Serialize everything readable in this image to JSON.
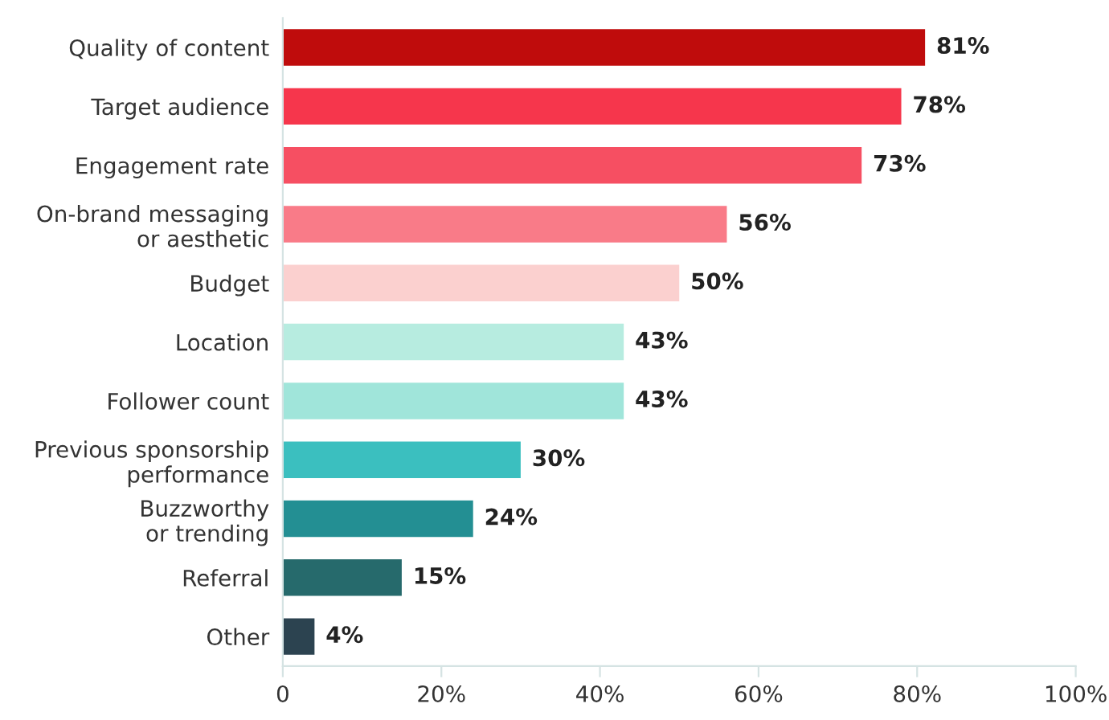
{
  "chart_data": {
    "type": "bar",
    "orientation": "horizontal",
    "categories": [
      "Quality of content",
      "Target audience",
      "Engagement rate",
      "On-brand messaging\nor aesthetic",
      "Budget",
      "Location",
      "Follower count",
      "Previous sponsorship\nperformance",
      "Buzzworthy\nor trending",
      "Referral",
      "Other"
    ],
    "values": [
      81,
      78,
      73,
      56,
      50,
      43,
      43,
      30,
      24,
      15,
      4
    ],
    "value_labels": [
      "81%",
      "78%",
      "73%",
      "56%",
      "50%",
      "43%",
      "43%",
      "30%",
      "24%",
      "15%",
      "4%"
    ],
    "colors": [
      "#bf0c0c",
      "#f6364c",
      "#f64f62",
      "#f97b88",
      "#fbd0cf",
      "#b7ece0",
      "#a0e5da",
      "#3bbfbf",
      "#238f93",
      "#266a6c",
      "#2c4350"
    ],
    "xlim": [
      0,
      100
    ],
    "xticks": [
      0,
      {
        "value": 20,
        "label": "20%"
      },
      {
        "value": 40,
        "label": "40%"
      },
      {
        "value": 60,
        "label": "60%"
      },
      {
        "value": 80,
        "label": "80%"
      },
      {
        "value": 100,
        "label": "100%"
      }
    ],
    "grid": false,
    "legend": false
  }
}
